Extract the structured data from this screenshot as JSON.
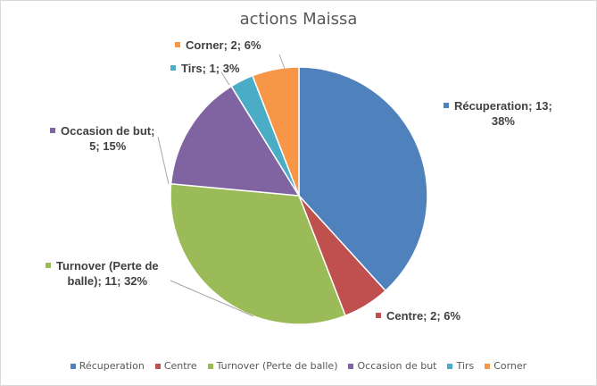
{
  "chart_data": {
    "type": "pie",
    "title": "actions Maissa",
    "legend_position": "bottom",
    "slices": [
      {
        "name": "Récuperation",
        "value": 13,
        "percent": "38%",
        "color": "#4f81bd",
        "label_lines": [
          "Récuperation; 13;",
          "38%"
        ]
      },
      {
        "name": "Centre",
        "value": 2,
        "percent": "6%",
        "color": "#c0504d",
        "label_lines": [
          "Centre; 2; 6%"
        ]
      },
      {
        "name": "Turnover (Perte de balle)",
        "value": 11,
        "percent": "32%",
        "color": "#9bbb59",
        "label_lines": [
          "Turnover (Perte de",
          "balle); 11; 32%"
        ]
      },
      {
        "name": "Occasion de but",
        "value": 5,
        "percent": "15%",
        "color": "#8064a2",
        "label_lines": [
          "Occasion de but;",
          "5; 15%"
        ]
      },
      {
        "name": "Tirs",
        "value": 1,
        "percent": "3%",
        "color": "#4bacc6",
        "label_lines": [
          "Tirs; 1; 3%"
        ]
      },
      {
        "name": "Corner",
        "value": 2,
        "percent": "6%",
        "color": "#f79646",
        "label_lines": [
          "Corner; 2; 6%"
        ]
      }
    ]
  }
}
